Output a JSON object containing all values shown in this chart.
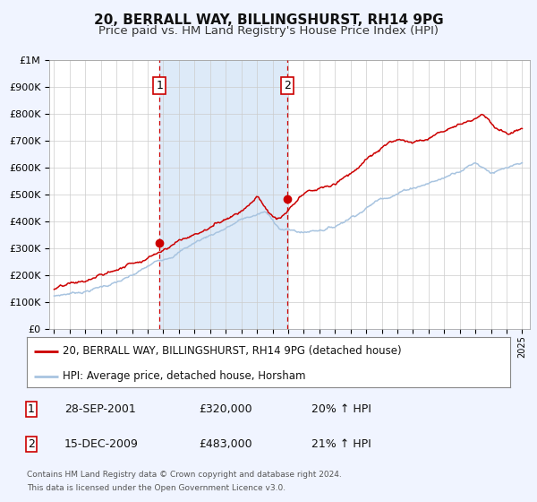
{
  "title": "20, BERRALL WAY, BILLINGSHURST, RH14 9PG",
  "subtitle": "Price paid vs. HM Land Registry's House Price Index (HPI)",
  "ylim": [
    0,
    1000000
  ],
  "xlim_start": 1994.7,
  "xlim_end": 2025.5,
  "yticks": [
    0,
    100000,
    200000,
    300000,
    400000,
    500000,
    600000,
    700000,
    800000,
    900000,
    1000000
  ],
  "ytick_labels": [
    "£0",
    "£100K",
    "£200K",
    "£300K",
    "£400K",
    "£500K",
    "£600K",
    "£700K",
    "£800K",
    "£900K",
    "£1M"
  ],
  "xticks": [
    1995,
    1996,
    1997,
    1998,
    1999,
    2000,
    2001,
    2002,
    2003,
    2004,
    2005,
    2006,
    2007,
    2008,
    2009,
    2010,
    2011,
    2012,
    2013,
    2014,
    2015,
    2016,
    2017,
    2018,
    2019,
    2020,
    2021,
    2022,
    2023,
    2024,
    2025
  ],
  "hpi_color": "#a8c4e0",
  "price_color": "#cc0000",
  "bg_color": "#f0f4ff",
  "plot_bg": "#ffffff",
  "grid_color": "#cccccc",
  "shade_color": "#ddeaf8",
  "vline_color": "#cc0000",
  "marker1_x": 2001.75,
  "marker1_y": 320000,
  "marker2_x": 2009.96,
  "marker2_y": 483000,
  "vline1_x": 2001.75,
  "vline2_x": 2009.96,
  "legend_label_price": "20, BERRALL WAY, BILLINGSHURST, RH14 9PG (detached house)",
  "legend_label_hpi": "HPI: Average price, detached house, Horsham",
  "table_row1": [
    "1",
    "28-SEP-2001",
    "£320,000",
    "20% ↑ HPI"
  ],
  "table_row2": [
    "2",
    "15-DEC-2009",
    "£483,000",
    "21% ↑ HPI"
  ],
  "footer1": "Contains HM Land Registry data © Crown copyright and database right 2024.",
  "footer2": "This data is licensed under the Open Government Licence v3.0.",
  "title_fontsize": 11,
  "subtitle_fontsize": 9.5
}
